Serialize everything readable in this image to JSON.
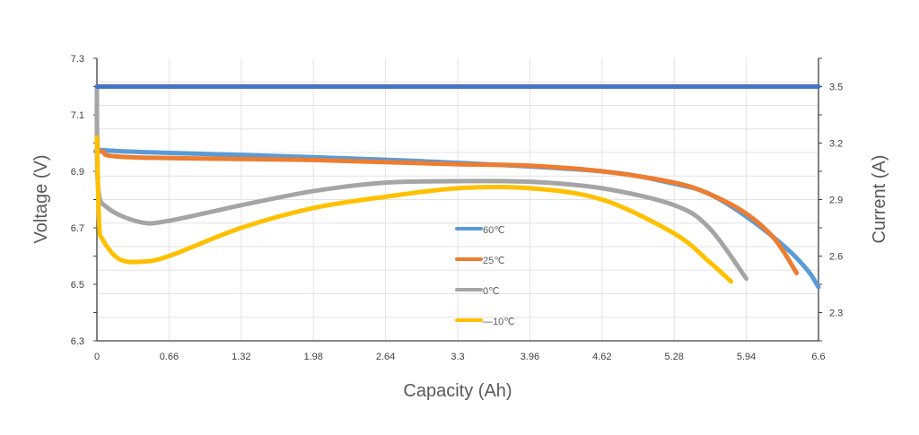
{
  "chart_data": {
    "type": "line",
    "title": "",
    "xlabel": "Capacity (Ah)",
    "ylabel": "Voltage (V)",
    "y2label": "Current (A)",
    "xlim": [
      0,
      6.6
    ],
    "ylim": [
      6.3,
      7.3
    ],
    "y2lim": [
      2.15,
      3.65
    ],
    "xticks": [
      "0",
      "0.66",
      "1.32",
      "1.98",
      "2.64",
      "3.3",
      "3.96",
      "4.62",
      "5.28",
      "5.94",
      "6.6"
    ],
    "yticks": [
      "6.3",
      "6.5",
      "6.7",
      "6.9",
      "7.1",
      "7.3"
    ],
    "y2ticks": [
      "2.3",
      "2.6",
      "2.9",
      "3.2",
      "3.5"
    ],
    "grid": true,
    "legend_position": "center",
    "series": [
      {
        "name": "60℃",
        "color": "#5B9BD5",
        "axis": "left",
        "x": [
          0,
          0.005,
          0.05,
          0.66,
          1.98,
          3.3,
          4.62,
          5.28,
          5.6,
          5.94,
          6.3,
          6.5,
          6.6
        ],
        "y": [
          7.2,
          6.99,
          6.975,
          6.965,
          6.95,
          6.93,
          6.9,
          6.856,
          6.82,
          6.74,
          6.63,
          6.55,
          6.49
        ]
      },
      {
        "name": "25℃",
        "color": "#ED7D31",
        "axis": "left",
        "x": [
          0,
          0.005,
          0.05,
          0.3,
          1.98,
          3.3,
          3.96,
          4.62,
          5.28,
          5.6,
          5.94,
          6.2,
          6.4
        ],
        "y": [
          7.2,
          6.99,
          6.97,
          6.95,
          6.94,
          6.925,
          6.92,
          6.9,
          6.86,
          6.82,
          6.75,
          6.66,
          6.54
        ]
      },
      {
        "name": "0℃",
        "color": "#A5A5A5",
        "axis": "left",
        "x": [
          0,
          0.01,
          0.1,
          0.4,
          0.66,
          1.32,
          1.98,
          2.64,
          3.3,
          3.96,
          4.62,
          5.28,
          5.6,
          5.94
        ],
        "y": [
          7.2,
          6.85,
          6.77,
          6.72,
          6.725,
          6.78,
          6.83,
          6.86,
          6.865,
          6.863,
          6.84,
          6.78,
          6.7,
          6.52
        ]
      },
      {
        "name": "—10℃",
        "color": "#FFC000",
        "axis": "left",
        "x": [
          0,
          0.02,
          0.05,
          0.2,
          0.4,
          0.66,
          1.32,
          1.98,
          2.64,
          3.3,
          3.96,
          4.62,
          5.28,
          5.6,
          5.8
        ],
        "y": [
          7.02,
          6.72,
          6.66,
          6.59,
          6.58,
          6.6,
          6.7,
          6.77,
          6.81,
          6.84,
          6.84,
          6.8,
          6.68,
          6.58,
          6.51
        ]
      },
      {
        "color": "#4472C4",
        "axis": "right",
        "x": [
          0,
          6.6
        ],
        "y": [
          3.5,
          3.5
        ]
      }
    ]
  }
}
